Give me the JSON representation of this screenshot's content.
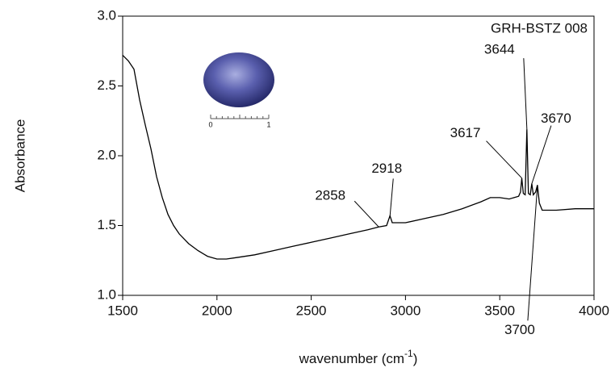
{
  "chart_data": {
    "type": "line",
    "ylabel": "Absorbance",
    "xlabel": "wavenumber (cm",
    "xlabel_sup": "-1",
    "xlabel_end": ")",
    "sample": "GRH-BSTZ 008",
    "scale_labels": [
      "0",
      "1"
    ],
    "xlim": [
      1500,
      4000
    ],
    "xticks": [
      1500,
      2000,
      2500,
      3000,
      3500,
      4000
    ],
    "ylim": [
      1.0,
      3.0
    ],
    "yticks": [
      {
        "value": 1.0,
        "label": "1.0"
      },
      {
        "value": 1.5,
        "label": "1.5"
      },
      {
        "value": 2.0,
        "label": "2.0"
      },
      {
        "value": 2.5,
        "label": "2.5"
      },
      {
        "value": 3.0,
        "label": "3.0"
      }
    ],
    "series": [
      {
        "color": "#000000",
        "x": [
          1500,
          1530,
          1560,
          1590,
          1620,
          1650,
          1680,
          1710,
          1740,
          1770,
          1800,
          1850,
          1900,
          1950,
          2000,
          2050,
          2100,
          2200,
          2300,
          2400,
          2500,
          2600,
          2700,
          2800,
          2858,
          2900,
          2918,
          2930,
          3000,
          3100,
          3200,
          3300,
          3400,
          3450,
          3500,
          3550,
          3600,
          3610,
          3617,
          3625,
          3635,
          3644,
          3652,
          3662,
          3670,
          3678,
          3690,
          3700,
          3710,
          3725,
          3750,
          3800,
          3900,
          4000
        ],
        "values": [
          2.72,
          2.68,
          2.62,
          2.4,
          2.22,
          2.05,
          1.85,
          1.7,
          1.58,
          1.5,
          1.44,
          1.37,
          1.32,
          1.28,
          1.26,
          1.26,
          1.27,
          1.29,
          1.32,
          1.35,
          1.38,
          1.41,
          1.44,
          1.47,
          1.49,
          1.5,
          1.57,
          1.52,
          1.52,
          1.55,
          1.58,
          1.62,
          1.67,
          1.7,
          1.7,
          1.69,
          1.71,
          1.74,
          1.84,
          1.73,
          1.72,
          2.19,
          1.73,
          1.72,
          1.8,
          1.72,
          1.74,
          1.79,
          1.66,
          1.61,
          1.61,
          1.61,
          1.62,
          1.62
        ]
      }
    ],
    "annotations": [
      {
        "label": "2858",
        "x": 2858,
        "y": 1.49
      },
      {
        "label": "2918",
        "x": 2918,
        "y": 1.57
      },
      {
        "label": "3617",
        "x": 3617,
        "y": 1.84
      },
      {
        "label": "3644",
        "x": 3644,
        "y": 2.19
      },
      {
        "label": "3670",
        "x": 3670,
        "y": 1.8
      },
      {
        "label": "3700",
        "x": 3700,
        "y": 1.79
      }
    ]
  }
}
